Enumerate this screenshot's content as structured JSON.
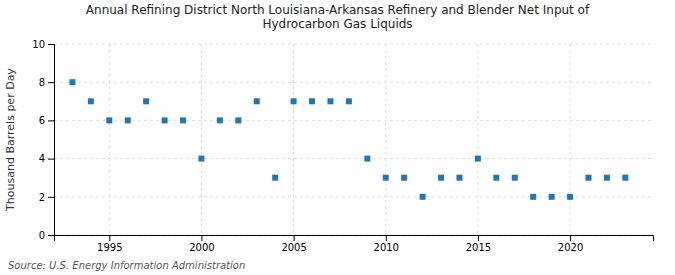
{
  "chart_data": {
    "type": "scatter",
    "title": "Annual Refining District North Louisiana-Arkansas Refinery and Blender Net Input of\nHydrocarbon Gas Liquids",
    "ylabel": "Thousand Barrels per Day",
    "annotations": [
      "Source: U.S. Energy Information Administration"
    ],
    "x": [
      1993,
      1994,
      1995,
      1996,
      1997,
      1998,
      1999,
      2000,
      2001,
      2002,
      2003,
      2004,
      2005,
      2006,
      2007,
      2008,
      2009,
      2010,
      2011,
      2012,
      2013,
      2014,
      2015,
      2016,
      2017,
      2018,
      2019,
      2020,
      2021,
      2022,
      2023
    ],
    "values": [
      8,
      7,
      6,
      6,
      7,
      6,
      6,
      4,
      6,
      6,
      7,
      3,
      7,
      7,
      7,
      7,
      4,
      3,
      3,
      2,
      3,
      3,
      4,
      3,
      3,
      2,
      2,
      2,
      3,
      3,
      3
    ],
    "marker": "square",
    "xlim": [
      1992,
      2024.5
    ],
    "xticks": [
      1995,
      2000,
      2005,
      2010,
      2015,
      2020
    ],
    "ylim": [
      0,
      10
    ],
    "yticks": [
      0,
      2,
      4,
      6,
      8,
      10
    ],
    "grid": true
  }
}
